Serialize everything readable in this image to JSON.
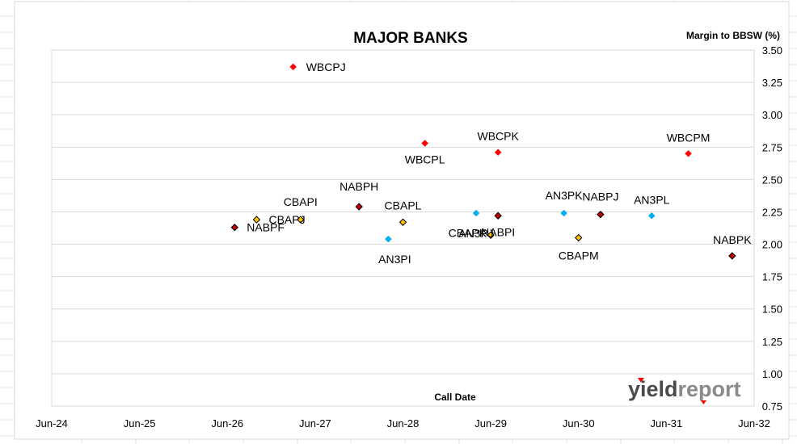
{
  "chart_data": {
    "type": "scatter",
    "title": "MAJOR BANKS",
    "ylabel": "Margin to BBSW (%)",
    "xlabel": "Call Date",
    "x_ticks": [
      "Jun-24",
      "Jun-25",
      "Jun-26",
      "Jun-27",
      "Jun-28",
      "Jun-29",
      "Jun-30",
      "Jun-31",
      "Jun-32"
    ],
    "y_ticks": [
      "3.50",
      "3.25",
      "3.00",
      "2.75",
      "2.50",
      "2.25",
      "2.00",
      "1.75",
      "1.50",
      "1.25",
      "1.00",
      "0.75"
    ],
    "xlim": [
      "2024-06",
      "2032-06"
    ],
    "ylim": [
      0.75,
      3.5
    ],
    "y_axis_side": "right",
    "grid": "horizontal",
    "colors": {
      "WBC": "#ff0000",
      "NAB": "#c00000",
      "CBA": "#ffc000",
      "ANZ": "#00b0f0"
    },
    "points": [
      {
        "label": "WBCPJ",
        "x": "2027-03",
        "y": 3.37,
        "group": "WBC"
      },
      {
        "label": "WBCPL",
        "x": "2028-09",
        "y": 2.78,
        "group": "WBC"
      },
      {
        "label": "WBCPK",
        "x": "2029-07",
        "y": 2.71,
        "group": "WBC"
      },
      {
        "label": "WBCPM",
        "x": "2031-09",
        "y": 2.7,
        "group": "WBC"
      },
      {
        "label": "NABPF",
        "x": "2026-07",
        "y": 2.13,
        "group": "NAB"
      },
      {
        "label": "NABPH",
        "x": "2027-12",
        "y": 2.29,
        "group": "NAB"
      },
      {
        "label": "NABPI",
        "x": "2029-07",
        "y": 2.22,
        "group": "NAB"
      },
      {
        "label": "NABPJ",
        "x": "2030-09",
        "y": 2.23,
        "group": "NAB"
      },
      {
        "label": "NABPK",
        "x": "2032-03",
        "y": 1.91,
        "group": "NAB"
      },
      {
        "label": "CBAPI",
        "x": "2027-04",
        "y": 2.19,
        "group": "CBA"
      },
      {
        "label": "CBAPJ",
        "x": "2026-10",
        "y": 2.19,
        "group": "CBA"
      },
      {
        "label": "CBAPL",
        "x": "2028-06",
        "y": 2.17,
        "group": "CBA"
      },
      {
        "label": "CBAPK",
        "x": "2029-06",
        "y": 2.07,
        "group": "CBA"
      },
      {
        "label": "CBAPM",
        "x": "2030-06",
        "y": 2.05,
        "group": "CBA"
      },
      {
        "label": "AN3PI",
        "x": "2028-04",
        "y": 2.04,
        "group": "ANZ"
      },
      {
        "label": "AN3PJ",
        "x": "2029-04",
        "y": 2.24,
        "group": "ANZ"
      },
      {
        "label": "AN3PK",
        "x": "2030-04",
        "y": 2.24,
        "group": "ANZ"
      },
      {
        "label": "AN3PL",
        "x": "2031-04",
        "y": 2.22,
        "group": "ANZ"
      }
    ]
  },
  "logo": {
    "text_a": "yield",
    "text_b": "report"
  }
}
